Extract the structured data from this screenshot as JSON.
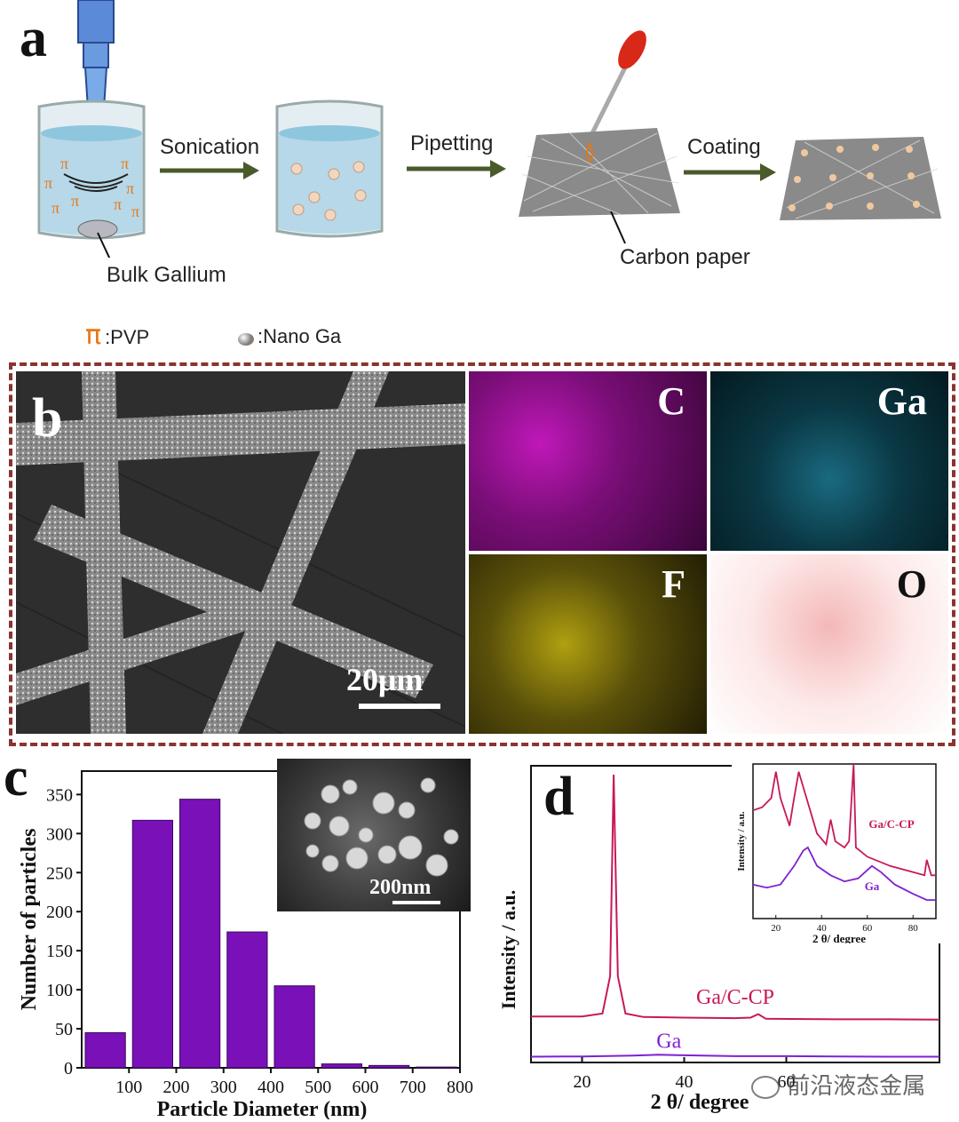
{
  "panel_a": {
    "letter": "a",
    "steps": [
      "Sonication",
      "Pipetting",
      "Coating"
    ],
    "bulk_label": "Bulk Gallium",
    "carbon_label": "Carbon paper",
    "legend_pvp": ":PVP",
    "legend_nanoga": ":Nano Ga"
  },
  "panel_b": {
    "letter": "b",
    "scale_bar": "20μm",
    "maps": [
      {
        "label": "C",
        "color": "#d020c8"
      },
      {
        "label": "Ga",
        "color": "#1ab0d0"
      },
      {
        "label": "F",
        "color": "#e0d010"
      },
      {
        "label": "O",
        "color": "#e02020"
      }
    ]
  },
  "panel_c": {
    "letter": "c",
    "inset_scale": "200nm"
  },
  "panel_d": {
    "letter": "d",
    "inset": {
      "xlabel": "2 θ/ degree",
      "ylabel": "Intensity / a.u.",
      "series_labels": [
        "Ga/C-CP",
        "Ga"
      ],
      "xticks": [
        "20",
        "40",
        "60",
        "80"
      ]
    }
  },
  "watermark": "前沿液态金属",
  "chart_data": [
    {
      "type": "bar",
      "title": "",
      "xlabel": "Particle Diameter (nm)",
      "ylabel": "Number of particles",
      "categories": [
        "0-100",
        "100-200",
        "200-300",
        "300-400",
        "400-500",
        "500-600",
        "600-700",
        "700-800"
      ],
      "values": [
        45,
        317,
        344,
        174,
        105,
        5,
        3,
        1
      ],
      "xticks": [
        "100",
        "200",
        "300",
        "400",
        "500",
        "600",
        "700",
        "800"
      ],
      "yticks": [
        "0",
        "50",
        "100",
        "150",
        "200",
        "250",
        "300",
        "350"
      ],
      "ylim": [
        0,
        380
      ],
      "xlim": [
        0,
        800
      ],
      "bar_color": "#7a10b8"
    },
    {
      "type": "line",
      "title": "",
      "xlabel": "2 θ/ degree",
      "ylabel": "Intensity / a.u.",
      "xticks": [
        "20",
        "40",
        "60"
      ],
      "xlim": [
        10,
        90
      ],
      "series": [
        {
          "name": "Ga/C-CP",
          "color": "#c8185a",
          "x": [
            10,
            20,
            24,
            25.5,
            26.2,
            27,
            28.5,
            32,
            40,
            50,
            53,
            54.5,
            56,
            70,
            80,
            90
          ],
          "y": [
            0.16,
            0.16,
            0.17,
            0.3,
            1.0,
            0.3,
            0.17,
            0.158,
            0.156,
            0.154,
            0.156,
            0.168,
            0.152,
            0.15,
            0.15,
            0.149
          ]
        },
        {
          "name": "Ga",
          "color": "#8020d0",
          "x": [
            10,
            20,
            30,
            35,
            40,
            50,
            60,
            70,
            80,
            90
          ],
          "y": [
            0.02,
            0.021,
            0.024,
            0.027,
            0.025,
            0.022,
            0.022,
            0.021,
            0.02,
            0.02
          ]
        }
      ]
    }
  ]
}
